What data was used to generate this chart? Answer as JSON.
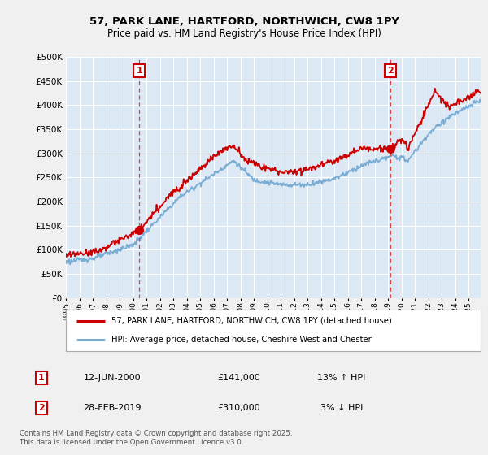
{
  "title1": "57, PARK LANE, HARTFORD, NORTHWICH, CW8 1PY",
  "title2": "Price paid vs. HM Land Registry's House Price Index (HPI)",
  "ylim": [
    0,
    500000
  ],
  "yticks": [
    0,
    50000,
    100000,
    150000,
    200000,
    250000,
    300000,
    350000,
    400000,
    450000,
    500000
  ],
  "fig_bg": "#f0f0f0",
  "plot_bg": "#dce8f4",
  "legend_label_red": "57, PARK LANE, HARTFORD, NORTHWICH, CW8 1PY (detached house)",
  "legend_label_blue": "HPI: Average price, detached house, Cheshire West and Chester",
  "annotation1_label": "1",
  "annotation1_date": "12-JUN-2000",
  "annotation1_price": "£141,000",
  "annotation1_hpi": "13% ↑ HPI",
  "annotation2_label": "2",
  "annotation2_date": "28-FEB-2019",
  "annotation2_price": "£310,000",
  "annotation2_hpi": "3% ↓ HPI",
  "footer": "Contains HM Land Registry data © Crown copyright and database right 2025.\nThis data is licensed under the Open Government Licence v3.0.",
  "vline1_x": 2000.46,
  "vline2_x": 2019.16,
  "marker1_y": 141000,
  "marker2_y": 310000,
  "red_color": "#cc0000",
  "blue_color": "#7aadd4",
  "vline_color": "#dd4444",
  "xmin": 1995.0,
  "xmax": 2025.9
}
